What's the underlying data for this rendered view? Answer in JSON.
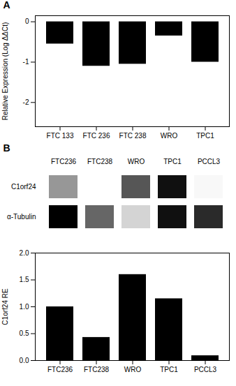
{
  "chart_data": [
    {
      "type": "bar",
      "title": "A",
      "categories": [
        "FTC 133",
        "FTC 236",
        "FTC 238",
        "WRO",
        "TPC1"
      ],
      "values": [
        -0.55,
        -1.1,
        -1.05,
        -0.35,
        -1.0
      ],
      "color": "#000000",
      "ylabel": "Relative Expression (Log ΔΔCt)",
      "ylim": [
        -2.6,
        0.15
      ],
      "yticks": [
        0,
        -1,
        -2
      ],
      "grid": false
    },
    {
      "type": "heatmap",
      "title": "B",
      "x": [
        "FTC236",
        "FTC238",
        "WRO",
        "TPC1",
        "PCCL3"
      ],
      "y": [
        "C1orf24",
        "α-Tubulin"
      ],
      "cells": [
        [
          0.55,
          0.18,
          0.72,
          0.88,
          0.22
        ],
        [
          0.92,
          0.68,
          0.38,
          0.88,
          0.82
        ]
      ]
    },
    {
      "type": "bar",
      "categories": [
        "FTC236",
        "FTC238",
        "WRO",
        "TPC1",
        "PCCL3"
      ],
      "values": [
        1.0,
        0.43,
        1.6,
        1.15,
        0.09
      ],
      "color": "#000000",
      "ylabel": "C1orf24 RE",
      "ylim": [
        0,
        2.0
      ],
      "yticks": [
        {
          "value": 0,
          "label": "0.0"
        },
        0.5,
        {
          "value": 1.0,
          "label": "1.0"
        },
        1.5,
        {
          "value": 2.0,
          "label": "2.0"
        }
      ],
      "grid": false
    }
  ]
}
